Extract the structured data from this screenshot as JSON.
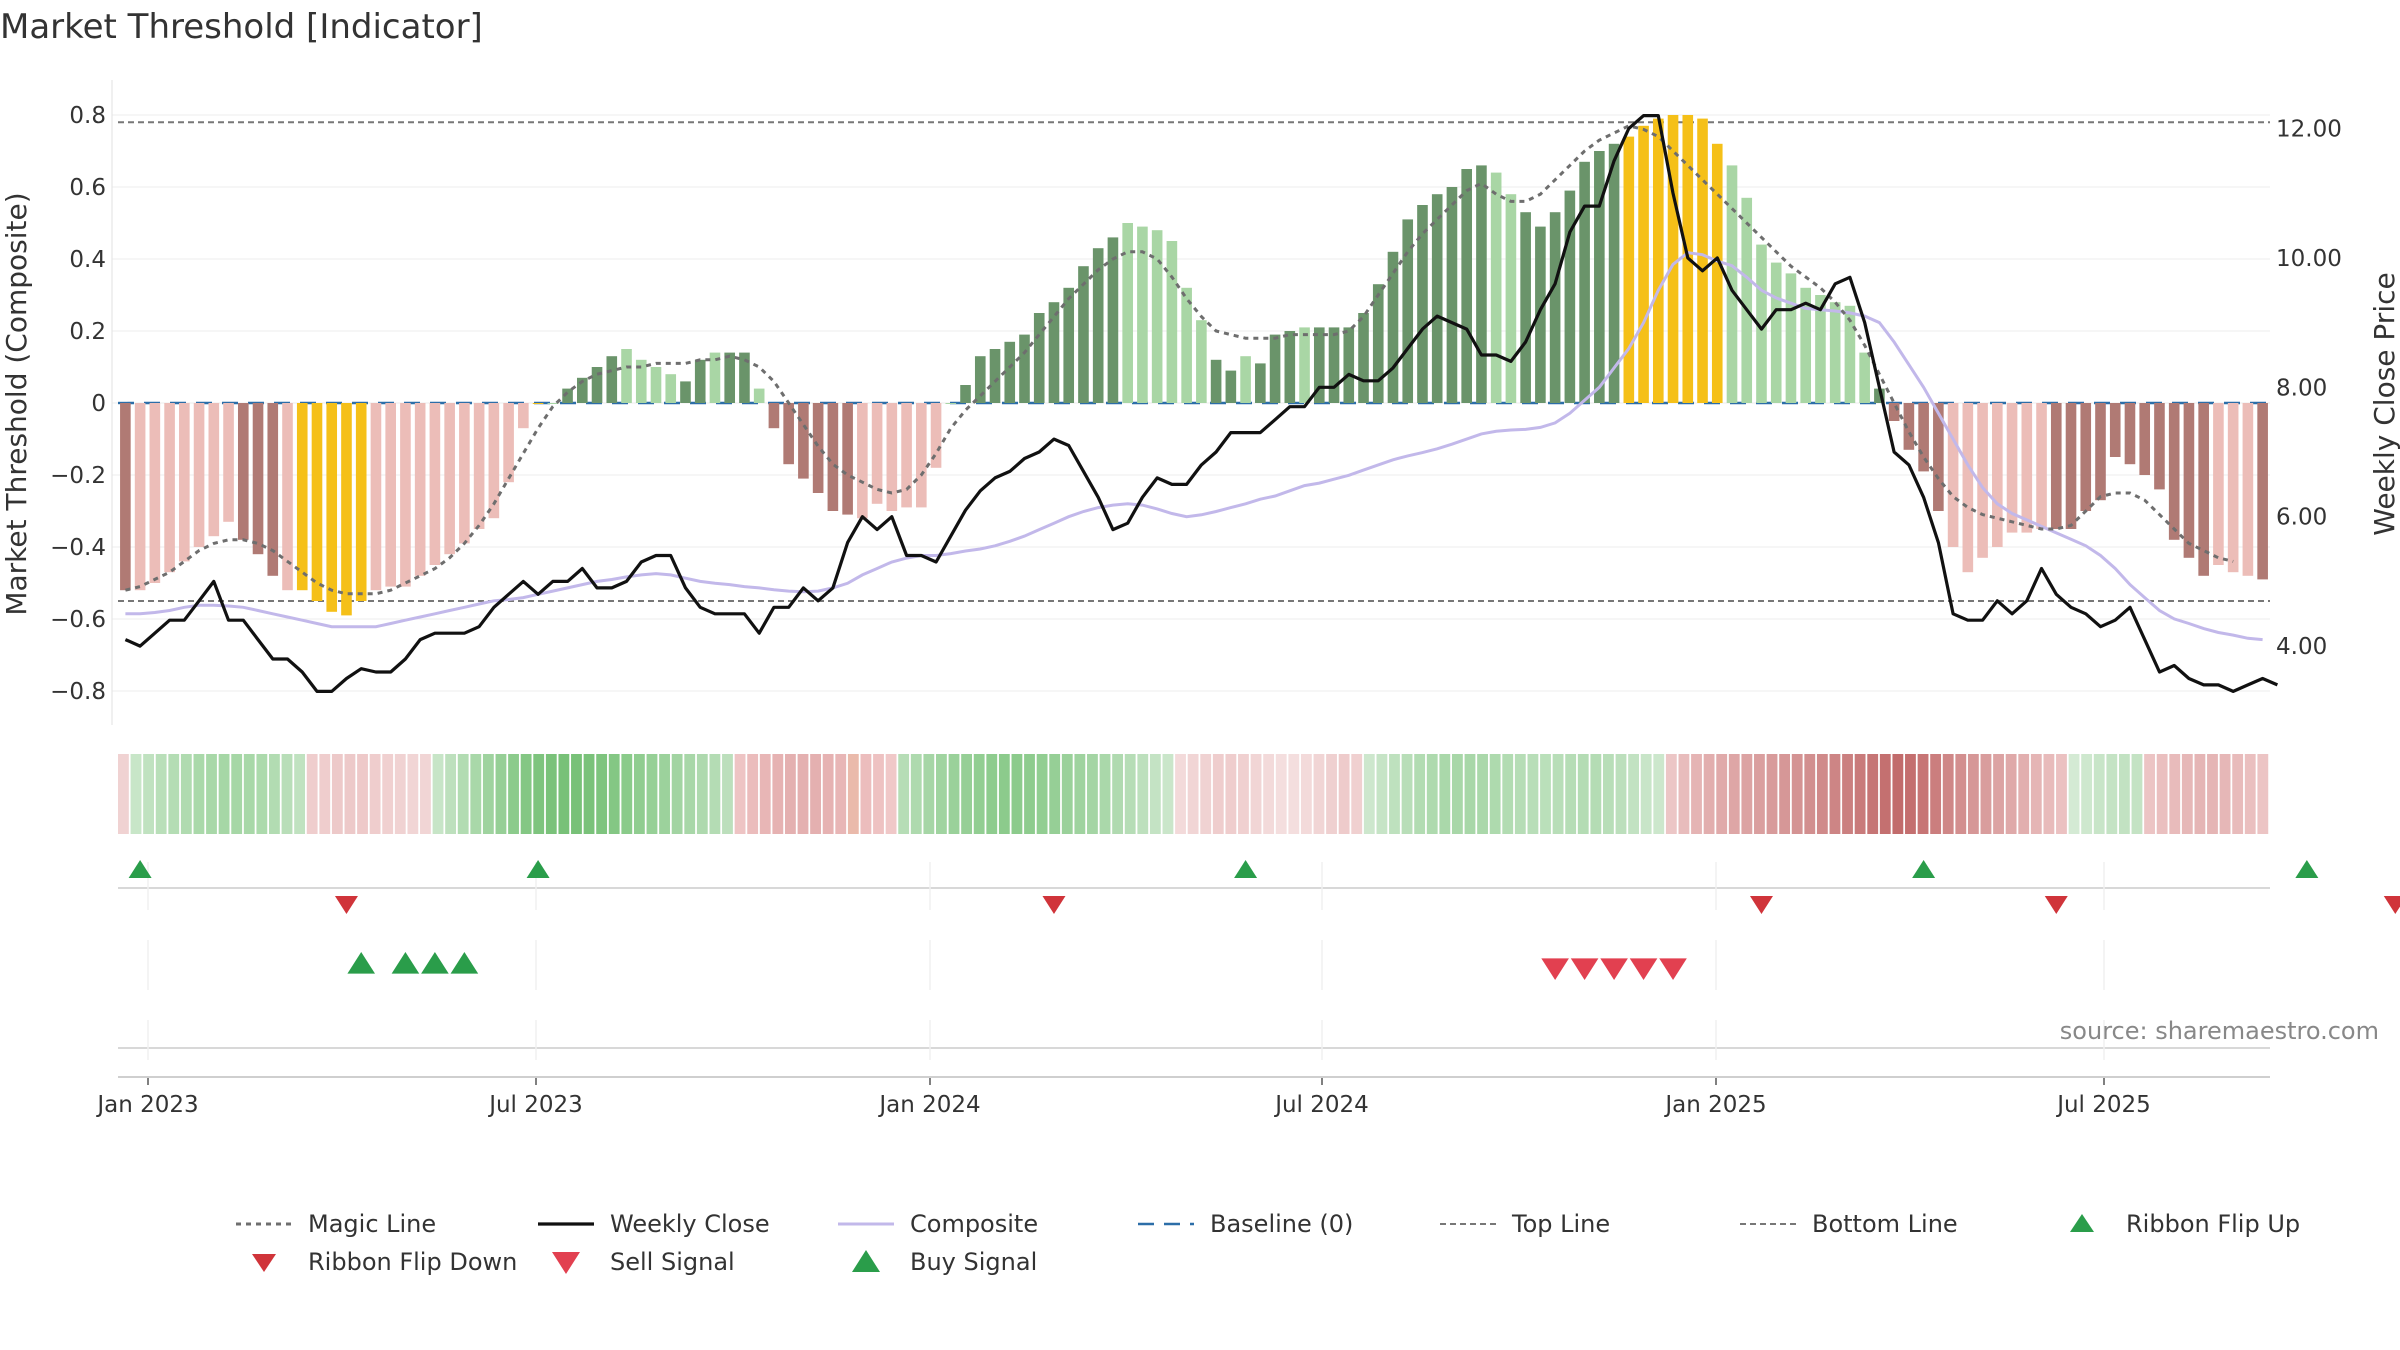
{
  "chart_data": {
    "type": "bar",
    "title": "Market Threshold [Indicator]",
    "y_left_label": "Market Threshold (Composite)",
    "y_right_label": "Weekly Close Price",
    "y_left_ticks": [
      "0.8",
      "0.6",
      "0.4",
      "0.2",
      "0",
      "−0.2",
      "−0.4",
      "−0.6",
      "−0.8"
    ],
    "y_right_ticks": [
      "12.00",
      "10.00",
      "8.00",
      "6.00",
      "4.00"
    ],
    "ylim_left": [
      -0.9,
      0.9
    ],
    "ylim_right": [
      3.0,
      12.8
    ],
    "x_ticks": [
      "Jan 2023",
      "Jul 2023",
      "Jan 2024",
      "Jul 2024",
      "Jan 2025",
      "Jul 2025"
    ],
    "top_line": 0.78,
    "bottom_line": -0.55,
    "source": "source: sharemaestro.com",
    "legend": [
      {
        "label": "Magic Line",
        "key": "magic_line"
      },
      {
        "label": "Weekly Close",
        "key": "weekly_close"
      },
      {
        "label": "Composite",
        "key": "composite"
      },
      {
        "label": "Baseline (0)",
        "key": "baseline"
      },
      {
        "label": "Top Line",
        "key": "top_line"
      },
      {
        "label": "Bottom Line",
        "key": "bottom_line"
      },
      {
        "label": "Ribbon Flip Up",
        "key": "flip_up"
      },
      {
        "label": "Ribbon Flip Down",
        "key": "flip_down"
      },
      {
        "label": "Sell Signal",
        "key": "sell"
      },
      {
        "label": "Buy Signal",
        "key": "buy"
      }
    ],
    "colors": {
      "dark_red": "#b07a74",
      "light_red": "#ecbdb8",
      "dark_green": "#6a946a",
      "light_green": "#a9d6a5",
      "gold": "#f5c018",
      "magic_line": "#6e6e6e",
      "weekly_close": "#111111",
      "composite": "#c2b8ea",
      "baseline": "#2c6ea8",
      "threshold": "#777777",
      "flip_up": "#2a9d4a",
      "flip_down": "#d0343a",
      "buy": "#2a9d4a",
      "sell": "#e24050"
    },
    "histogram": {
      "values": [
        -0.52,
        -0.52,
        -0.5,
        -0.47,
        -0.44,
        -0.4,
        -0.37,
        -0.33,
        -0.38,
        -0.42,
        -0.48,
        -0.52,
        -0.52,
        -0.55,
        -0.58,
        -0.59,
        -0.55,
        -0.52,
        -0.51,
        -0.51,
        -0.48,
        -0.45,
        -0.42,
        -0.39,
        -0.35,
        -0.32,
        -0.22,
        -0.07,
        0.0,
        0.0,
        0.04,
        0.07,
        0.1,
        0.13,
        0.15,
        0.12,
        0.1,
        0.08,
        0.06,
        0.12,
        0.14,
        0.14,
        0.14,
        0.04,
        -0.07,
        -0.17,
        -0.21,
        -0.25,
        -0.3,
        -0.31,
        -0.32,
        -0.28,
        -0.3,
        -0.29,
        -0.29,
        -0.18,
        0.0,
        0.05,
        0.13,
        0.15,
        0.17,
        0.19,
        0.25,
        0.28,
        0.32,
        0.38,
        0.43,
        0.46,
        0.5,
        0.49,
        0.48,
        0.45,
        0.32,
        0.23,
        0.12,
        0.09,
        0.13,
        0.11,
        0.19,
        0.2,
        0.21,
        0.21,
        0.21,
        0.21,
        0.25,
        0.33,
        0.42,
        0.51,
        0.55,
        0.58,
        0.6,
        0.65,
        0.66,
        0.64,
        0.58,
        0.53,
        0.49,
        0.53,
        0.59,
        0.67,
        0.7,
        0.72,
        0.74,
        0.77,
        0.79,
        0.8,
        0.8,
        0.79,
        0.72,
        0.66,
        0.57,
        0.44,
        0.39,
        0.36,
        0.32,
        0.3,
        0.28,
        0.27,
        0.14,
        0.04,
        -0.05,
        -0.13,
        -0.19,
        -0.3,
        -0.4,
        -0.47,
        -0.43,
        -0.4,
        -0.36,
        -0.36,
        -0.35,
        -0.35,
        -0.35,
        -0.3,
        -0.27,
        -0.15,
        -0.17,
        -0.2,
        -0.24,
        -0.38,
        -0.43,
        -0.48,
        -0.45,
        -0.47,
        -0.48,
        -0.49
      ],
      "tones": "DLLLLLLLDDDLGGGGGLLLLLLLLLLLGLDDDDLLLLDDLDDLDDDDDDLLLLLLLDDDDDDDDDDDLLLLLLDDLDDDLDDDDDDDDDDDDLLDDDDDDDGGGGGGGLLLLLLLLLLDDDDDLLLLLLLDDDDDDDDDDDLLLDDDDDDDDDDDDDD"
    },
    "weekly_close": [
      4.1,
      4.0,
      4.2,
      4.4,
      4.4,
      4.7,
      5.0,
      4.4,
      4.4,
      4.1,
      3.8,
      3.8,
      3.6,
      3.3,
      3.3,
      3.5,
      3.65,
      3.6,
      3.6,
      3.8,
      4.1,
      4.2,
      4.2,
      4.2,
      4.3,
      4.6,
      4.8,
      5.0,
      4.8,
      5.0,
      5.0,
      5.2,
      4.9,
      4.9,
      5.0,
      5.3,
      5.4,
      5.4,
      4.9,
      4.6,
      4.5,
      4.5,
      4.5,
      4.2,
      4.6,
      4.6,
      4.9,
      4.7,
      4.9,
      5.6,
      6.0,
      5.8,
      6.0,
      5.4,
      5.4,
      5.3,
      5.7,
      6.1,
      6.4,
      6.6,
      6.7,
      6.9,
      7.0,
      7.2,
      7.1,
      6.7,
      6.3,
      5.8,
      5.9,
      6.3,
      6.6,
      6.5,
      6.5,
      6.8,
      7.0,
      7.3,
      7.3,
      7.3,
      7.5,
      7.7,
      7.7,
      8.0,
      8.0,
      8.2,
      8.1,
      8.1,
      8.3,
      8.6,
      8.9,
      9.1,
      9.0,
      8.9,
      8.5,
      8.5,
      8.4,
      8.7,
      9.2,
      9.6,
      10.4,
      10.8,
      10.8,
      11.5,
      12.0,
      12.2,
      12.2,
      11.0,
      10.0,
      9.8,
      10.0,
      9.5,
      9.2,
      8.9,
      9.2,
      9.2,
      9.3,
      9.2,
      9.6,
      9.7,
      9.0,
      8.0,
      7.0,
      6.8,
      6.3,
      5.6,
      4.5,
      4.4,
      4.4,
      4.7,
      4.5,
      4.7,
      5.2,
      4.8,
      4.6,
      4.5,
      4.3,
      4.4,
      4.6,
      4.1,
      3.6,
      3.7,
      3.5,
      3.4,
      3.4,
      3.3,
      3.4,
      3.5,
      3.4
    ],
    "composite": [
      4.5,
      4.5,
      4.52,
      4.55,
      4.6,
      4.63,
      4.63,
      4.62,
      4.6,
      4.55,
      4.5,
      4.45,
      4.4,
      4.35,
      4.3,
      4.3,
      4.3,
      4.3,
      4.35,
      4.4,
      4.45,
      4.5,
      4.55,
      4.6,
      4.65,
      4.7,
      4.72,
      4.75,
      4.8,
      4.85,
      4.9,
      4.95,
      5.0,
      5.03,
      5.07,
      5.1,
      5.12,
      5.1,
      5.05,
      5.0,
      4.97,
      4.95,
      4.92,
      4.9,
      4.87,
      4.85,
      4.84,
      4.85,
      4.9,
      4.97,
      5.1,
      5.2,
      5.3,
      5.36,
      5.4,
      5.4,
      5.43,
      5.47,
      5.5,
      5.55,
      5.62,
      5.7,
      5.8,
      5.9,
      6.0,
      6.08,
      6.14,
      6.18,
      6.2,
      6.18,
      6.12,
      6.05,
      6.0,
      6.03,
      6.08,
      6.14,
      6.2,
      6.27,
      6.32,
      6.4,
      6.48,
      6.52,
      6.58,
      6.64,
      6.72,
      6.8,
      6.88,
      6.94,
      6.99,
      7.05,
      7.12,
      7.2,
      7.28,
      7.32,
      7.34,
      7.35,
      7.38,
      7.45,
      7.6,
      7.8,
      8.0,
      8.3,
      8.6,
      9.0,
      9.5,
      9.9,
      10.08,
      10.05,
      9.95,
      9.88,
      9.7,
      9.5,
      9.38,
      9.3,
      9.22,
      9.2,
      9.18,
      9.15,
      9.1,
      9.0,
      8.7,
      8.35,
      8.0,
      7.6,
      7.2,
      6.8,
      6.45,
      6.2,
      6.05,
      5.95,
      5.85,
      5.75,
      5.65,
      5.55,
      5.4,
      5.2,
      4.95,
      4.75,
      4.55,
      4.42,
      4.35,
      4.27,
      4.21,
      4.17,
      4.12,
      4.1
    ],
    "magic_line": [
      -0.52,
      -0.51,
      -0.49,
      -0.47,
      -0.44,
      -0.41,
      -0.39,
      -0.38,
      -0.38,
      -0.39,
      -0.41,
      -0.44,
      -0.47,
      -0.5,
      -0.52,
      -0.53,
      -0.53,
      -0.53,
      -0.52,
      -0.5,
      -0.48,
      -0.46,
      -0.43,
      -0.39,
      -0.34,
      -0.28,
      -0.21,
      -0.14,
      -0.07,
      -0.01,
      0.03,
      0.06,
      0.08,
      0.09,
      0.1,
      0.1,
      0.11,
      0.11,
      0.11,
      0.12,
      0.12,
      0.13,
      0.12,
      0.1,
      0.06,
      0.0,
      -0.06,
      -0.12,
      -0.17,
      -0.2,
      -0.22,
      -0.24,
      -0.25,
      -0.24,
      -0.2,
      -0.14,
      -0.07,
      -0.02,
      0.02,
      0.06,
      0.1,
      0.14,
      0.19,
      0.24,
      0.29,
      0.33,
      0.37,
      0.4,
      0.42,
      0.42,
      0.4,
      0.35,
      0.29,
      0.24,
      0.2,
      0.19,
      0.18,
      0.18,
      0.18,
      0.19,
      0.19,
      0.19,
      0.19,
      0.2,
      0.24,
      0.3,
      0.36,
      0.42,
      0.47,
      0.51,
      0.55,
      0.59,
      0.61,
      0.58,
      0.56,
      0.56,
      0.58,
      0.62,
      0.66,
      0.7,
      0.73,
      0.75,
      0.77,
      0.76,
      0.74,
      0.7,
      0.66,
      0.62,
      0.58,
      0.54,
      0.5,
      0.46,
      0.42,
      0.38,
      0.35,
      0.32,
      0.28,
      0.23,
      0.16,
      0.08,
      0.0,
      -0.08,
      -0.15,
      -0.21,
      -0.26,
      -0.29,
      -0.31,
      -0.32,
      -0.33,
      -0.34,
      -0.35,
      -0.35,
      -0.34,
      -0.3,
      -0.26,
      -0.25,
      -0.25,
      -0.27,
      -0.31,
      -0.35,
      -0.39,
      -0.41,
      -0.43,
      -0.44
    ],
    "ribbon": [
      {
        "c": "#f0d2d2"
      },
      {
        "c": "#c8e6c8"
      },
      {
        "c": "#c0e2c0"
      },
      {
        "c": "#b9dfb9"
      },
      {
        "c": "#b4ddb4"
      },
      {
        "c": "#b0dbb0"
      },
      {
        "c": "#aad9aa"
      },
      {
        "c": "#a8d8a8"
      },
      {
        "c": "#a6d7a6"
      },
      {
        "c": "#a6d7a6"
      },
      {
        "c": "#a8d8a8"
      },
      {
        "c": "#acdaac"
      },
      {
        "c": "#b2dcb2"
      },
      {
        "c": "#b8deb8"
      },
      {
        "c": "#c0e2c0"
      },
      {
        "c": "#efcdcd"
      },
      {
        "c": "#efcdcd"
      },
      {
        "c": "#edc9c9"
      },
      {
        "c": "#edc9c9"
      },
      {
        "c": "#eec9c9"
      },
      {
        "c": "#efcdcd"
      },
      {
        "c": "#f0d0d0"
      },
      {
        "c": "#f0d2d2"
      },
      {
        "c": "#f1d5d5"
      },
      {
        "c": "#f1d5d5"
      },
      {
        "c": "#c7e5c7"
      },
      {
        "c": "#bde0bd"
      },
      {
        "c": "#b2dcb2"
      },
      {
        "c": "#a9d8a9"
      },
      {
        "c": "#9fd39f"
      },
      {
        "c": "#96cf96"
      },
      {
        "c": "#8ccb8c"
      },
      {
        "c": "#84c784"
      },
      {
        "c": "#7ec47e"
      },
      {
        "c": "#7ac27a"
      },
      {
        "c": "#78c178"
      },
      {
        "c": "#78c178"
      },
      {
        "c": "#7ac27a"
      },
      {
        "c": "#7ec47e"
      },
      {
        "c": "#84c784"
      },
      {
        "c": "#8acb8a"
      },
      {
        "c": "#90cd90"
      },
      {
        "c": "#96d096"
      },
      {
        "c": "#9cd29c"
      },
      {
        "c": "#a2d4a2"
      },
      {
        "c": "#a8d7a8"
      },
      {
        "c": "#aed9ae"
      },
      {
        "c": "#b4dcb4"
      },
      {
        "c": "#bcdfbc"
      },
      {
        "c": "#eec4c4"
      },
      {
        "c": "#ebbcbc"
      },
      {
        "c": "#e8b6b6"
      },
      {
        "c": "#e6b2b2"
      },
      {
        "c": "#e4b0b0"
      },
      {
        "c": "#e4b0b0"
      },
      {
        "c": "#e4b0b0"
      },
      {
        "c": "#e6b2b2"
      },
      {
        "c": "#e8b6b6"
      },
      {
        "c": "#eabaab"
      },
      {
        "c": "#ecbdbd"
      },
      {
        "c": "#eec2c2"
      },
      {
        "c": "#f0c8c8"
      },
      {
        "c": "#b6ddb6"
      },
      {
        "c": "#aedaae"
      },
      {
        "c": "#a6d6a6"
      },
      {
        "c": "#a0d4a0"
      },
      {
        "c": "#9ad19a"
      },
      {
        "c": "#96cf96"
      },
      {
        "c": "#92ce92"
      },
      {
        "c": "#8ecc8e"
      },
      {
        "c": "#8ccb8c"
      },
      {
        "c": "#8ccb8c"
      },
      {
        "c": "#8ecc8e"
      },
      {
        "c": "#92ce92"
      },
      {
        "c": "#96cf96"
      },
      {
        "c": "#9ad19a"
      },
      {
        "c": "#9fd39f"
      },
      {
        "c": "#a4d5a4"
      },
      {
        "c": "#aad8aa"
      },
      {
        "c": "#b0dab0"
      },
      {
        "c": "#b6ddb6"
      },
      {
        "c": "#bde0bd"
      },
      {
        "c": "#c4e3c4"
      },
      {
        "c": "#cae6ca"
      },
      {
        "c": "#f3dada"
      },
      {
        "c": "#f1d5d5"
      },
      {
        "c": "#f0d2d2"
      },
      {
        "c": "#efcdcd"
      },
      {
        "c": "#efcdcd"
      },
      {
        "c": "#f0d0d0"
      },
      {
        "c": "#f1d5d5"
      },
      {
        "c": "#f3dada"
      },
      {
        "c": "#f4dede"
      },
      {
        "c": "#f4dede"
      },
      {
        "c": "#f3dada"
      },
      {
        "c": "#f1d5d5"
      },
      {
        "c": "#efd0d0"
      },
      {
        "c": "#eecbcb"
      },
      {
        "c": "#f0d0d0"
      },
      {
        "c": "#cde7cd"
      },
      {
        "c": "#c6e4c6"
      },
      {
        "c": "#bee1be"
      },
      {
        "c": "#b8deb8"
      },
      {
        "c": "#b2dcb2"
      },
      {
        "c": "#aedaae"
      },
      {
        "c": "#aad8aa"
      },
      {
        "c": "#a8d7a8"
      },
      {
        "c": "#a8d7a8"
      },
      {
        "c": "#aad8aa"
      },
      {
        "c": "#aedaae"
      },
      {
        "c": "#b2dcb2"
      },
      {
        "c": "#b6ddb6"
      },
      {
        "c": "#b8deb8"
      },
      {
        "c": "#bae0ba"
      },
      {
        "c": "#b8deb8"
      },
      {
        "c": "#b6ddb6"
      },
      {
        "c": "#b4dcb4"
      },
      {
        "c": "#b4dcb4"
      },
      {
        "c": "#b8deb8"
      },
      {
        "c": "#bcdfbc"
      },
      {
        "c": "#c2e2c2"
      },
      {
        "c": "#c8e5c8"
      },
      {
        "c": "#cce7cc"
      },
      {
        "c": "#ecc6c6"
      },
      {
        "c": "#e8bcbc"
      },
      {
        "c": "#e5b4b4"
      },
      {
        "c": "#e2aeae"
      },
      {
        "c": "#e0aaaa"
      },
      {
        "c": "#dea6a6"
      },
      {
        "c": "#dca3a3"
      },
      {
        "c": "#da9f9f"
      },
      {
        "c": "#d89b9b"
      },
      {
        "c": "#d69797"
      },
      {
        "c": "#d49393"
      },
      {
        "c": "#d28f8f"
      },
      {
        "c": "#d08a8a"
      },
      {
        "c": "#cd8585"
      },
      {
        "c": "#cb8080"
      },
      {
        "c": "#c97b7b"
      },
      {
        "c": "#c67575"
      },
      {
        "c": "#c47070"
      },
      {
        "c": "#c26c6c"
      },
      {
        "c": "#c46f6f"
      },
      {
        "c": "#c77575"
      },
      {
        "c": "#cb7e7e"
      },
      {
        "c": "#cf8787"
      },
      {
        "c": "#d38f8f"
      },
      {
        "c": "#d69797"
      },
      {
        "c": "#d99d9d"
      },
      {
        "c": "#dca3a3"
      },
      {
        "c": "#dfa9a9"
      },
      {
        "c": "#e2afaf"
      },
      {
        "c": "#e5b5b5"
      },
      {
        "c": "#e8bbbb"
      },
      {
        "c": "#ebc1c1"
      },
      {
        "c": "#d4ead4"
      },
      {
        "c": "#cee8ce"
      },
      {
        "c": "#c8e5c8"
      },
      {
        "c": "#c4e3c4"
      },
      {
        "c": "#c2e2c2"
      },
      {
        "c": "#c4e3c4"
      },
      {
        "c": "#ecc4c4"
      },
      {
        "c": "#eabfbf"
      },
      {
        "c": "#e8bbbb"
      },
      {
        "c": "#e6b7b7"
      },
      {
        "c": "#e5b5b5"
      },
      {
        "c": "#e5b5b5"
      },
      {
        "c": "#e6b7b7"
      },
      {
        "c": "#e8bbbb"
      },
      {
        "c": "#eabfbf"
      },
      {
        "c": "#ecc4c4"
      }
    ],
    "flip_up_idx": [
      1,
      28,
      76,
      122,
      148
    ],
    "flip_down_idx": [
      15,
      63,
      111,
      131,
      154
    ],
    "buy_idx": [
      16,
      19,
      21,
      23
    ],
    "sell_idx": [
      97,
      99,
      101,
      103,
      105
    ]
  }
}
